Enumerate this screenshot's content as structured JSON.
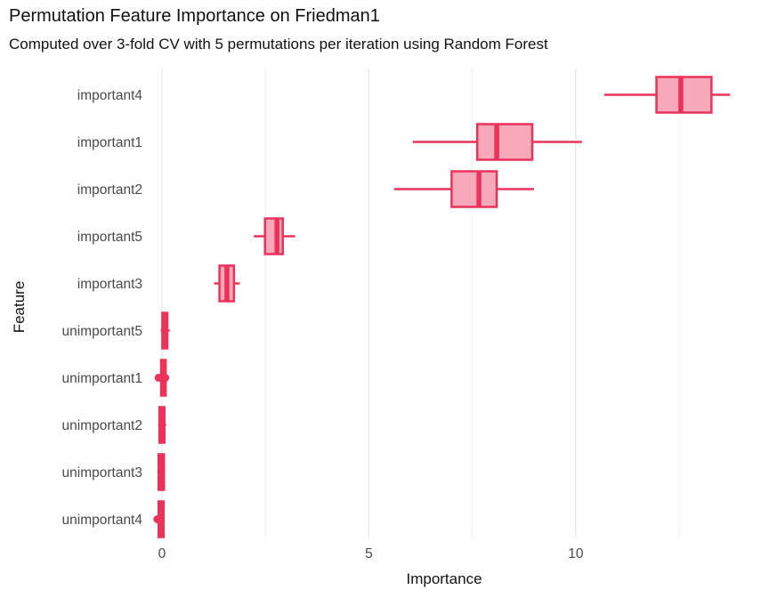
{
  "header": {
    "title": "Permutation Feature Importance on Friedman1",
    "subtitle": "Computed over 3-fold CV with 5 permutations per iteration using Random Forest"
  },
  "colors": {
    "box_stroke": "#ec325a",
    "box_fill": "#f7a8b9",
    "grid_major": "#e3e3e3",
    "grid_minor": "#efefef",
    "tick_label": "#4a4a4a",
    "text": "#111111",
    "background": "#ffffff"
  },
  "chart_data": {
    "type": "boxplot",
    "orientation": "horizontal",
    "title": "Permutation Feature Importance on Friedman1",
    "subtitle": "Computed over 3-fold CV with 5 permutations per iteration using Random Forest",
    "xlabel": "Importance",
    "ylabel": "Feature",
    "xlim": [
      -0.3,
      14.67
    ],
    "x_major_ticks": [
      0,
      5,
      10
    ],
    "x_minor_ticks": [
      2.5,
      7.5,
      12.5
    ],
    "grid": "vertical-only",
    "legend": "none",
    "categories": [
      "important4",
      "important1",
      "important2",
      "important5",
      "important3",
      "unimportant5",
      "unimportant1",
      "unimportant2",
      "unimportant3",
      "unimportant4"
    ],
    "series": [
      {
        "feature": "important4",
        "whisker_low": 10.69,
        "q1": 11.95,
        "median": 12.54,
        "q3": 13.28,
        "whisker_high": 13.73,
        "outliers": []
      },
      {
        "feature": "important1",
        "whisker_low": 6.06,
        "q1": 7.62,
        "median": 8.09,
        "q3": 8.95,
        "whisker_high": 10.15,
        "outliers": []
      },
      {
        "feature": "important2",
        "whisker_low": 5.61,
        "q1": 7.0,
        "median": 7.66,
        "q3": 8.09,
        "whisker_high": 8.99,
        "outliers": []
      },
      {
        "feature": "important5",
        "whisker_low": 2.22,
        "q1": 2.49,
        "median": 2.78,
        "q3": 2.92,
        "whisker_high": 3.22,
        "outliers": []
      },
      {
        "feature": "important3",
        "whisker_low": 1.26,
        "q1": 1.39,
        "median": 1.57,
        "q3": 1.74,
        "whisker_high": 1.88,
        "outliers": []
      },
      {
        "feature": "unimportant5",
        "whisker_low": -0.03,
        "q1": 0.01,
        "median": 0.07,
        "q3": 0.13,
        "whisker_high": 0.19,
        "outliers": []
      },
      {
        "feature": "unimportant1",
        "whisker_low": -0.05,
        "q1": -0.02,
        "median": 0.03,
        "q3": 0.09,
        "whisker_high": 0.14,
        "outliers": [
          -0.08,
          0.08
        ]
      },
      {
        "feature": "unimportant2",
        "whisker_low": -0.09,
        "q1": -0.06,
        "median": -0.01,
        "q3": 0.06,
        "whisker_high": 0.1,
        "outliers": []
      },
      {
        "feature": "unimportant3",
        "whisker_low": -0.11,
        "q1": -0.08,
        "median": -0.03,
        "q3": 0.05,
        "whisker_high": 0.07,
        "outliers": []
      },
      {
        "feature": "unimportant4",
        "whisker_low": -0.1,
        "q1": -0.08,
        "median": -0.02,
        "q3": 0.04,
        "whisker_high": 0.06,
        "outliers": [
          -0.11
        ]
      }
    ]
  }
}
